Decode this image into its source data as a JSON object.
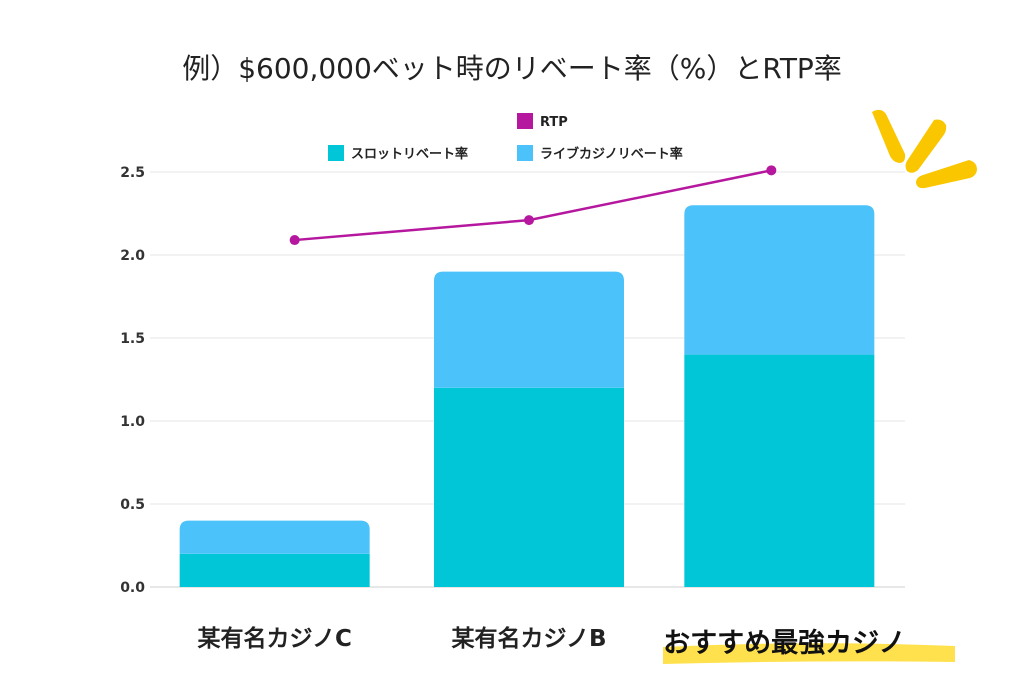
{
  "chart_data": {
    "type": "bar",
    "stacked": true,
    "title": "例）$600,000ベット時のリベート率（%）とRTP率",
    "categories": [
      "某有名カジノC",
      "某有名カジノB",
      "おすすめ最強カジノ"
    ],
    "series": [
      {
        "name": "スロットリベート率",
        "kind": "bar",
        "color": "#00C6D7",
        "values": [
          0.2,
          1.2,
          1.4
        ]
      },
      {
        "name": "ライブカジノリベート率",
        "kind": "bar",
        "color": "#4BC2F9",
        "values": [
          0.2,
          0.7,
          0.9
        ]
      },
      {
        "name": "RTP",
        "kind": "line",
        "color": "#B5179E",
        "values": [
          2.09,
          2.21,
          2.51
        ]
      }
    ],
    "ylim": [
      0,
      2.5
    ],
    "yticks": [
      "0.0",
      "0.5",
      "1.0",
      "1.5",
      "2.0",
      "2.5"
    ],
    "grid": true,
    "legend_position": "top"
  },
  "accent_colors": {
    "highlight_underline": "#FFE14D",
    "sparkle": "#F9C600"
  }
}
